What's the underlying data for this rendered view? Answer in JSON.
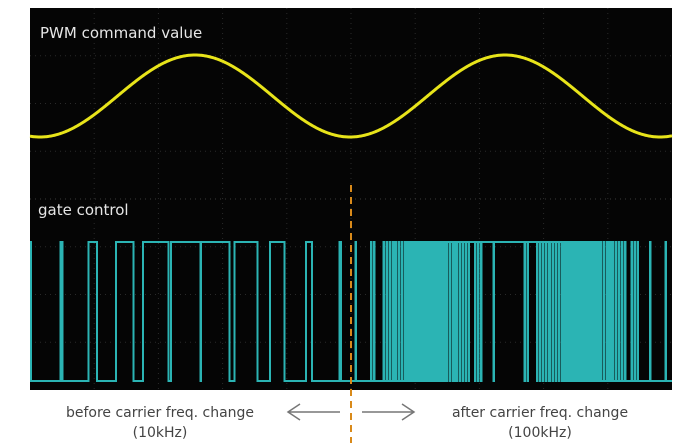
{
  "screen": {
    "top_label": "PWM command value",
    "bottom_label": "gate control"
  },
  "annotations": {
    "left": {
      "line1": "before carrier freq. change",
      "line2": "(10kHz)"
    },
    "right": {
      "line1": "after carrier freq. change",
      "line2": "(100kHz)"
    }
  }
}
